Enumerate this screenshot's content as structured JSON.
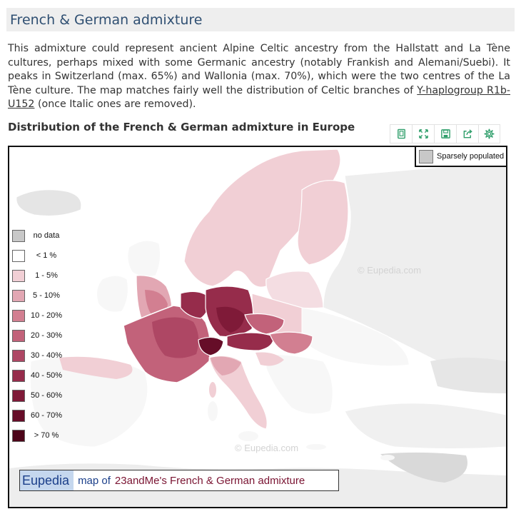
{
  "section": {
    "title": "French & German admixture"
  },
  "intro": {
    "text_before": "This admixture could represent ancient Alpine Celtic ancestry from the Hallstatt and La Tène cultures, perhaps mixed with some Germanic ancestry (notably Frankish and Alemani/Suebi). It peaks in Switzerland (max. 65%) and Wallonia (max. 70%), which were the two centres of the La Tène culture. The map matches fairly well the distribution of Celtic branches of ",
    "link_text": "Y-haplogroup R1b-U152",
    "text_after": " (once Italic ones are removed)."
  },
  "chart_title": "Distribution of the French & German admixture in Europe",
  "toolbar": {
    "buttons": [
      {
        "icon": "copy-icon"
      },
      {
        "icon": "fullscreen-icon"
      },
      {
        "icon": "save-icon"
      },
      {
        "icon": "share-icon"
      },
      {
        "icon": "gear-icon"
      }
    ],
    "color": "#2e9e6a"
  },
  "map": {
    "sparse_label": "Sparsely populated",
    "sparse_color": "#c8c8c8",
    "legend": [
      {
        "label": "no data",
        "color": "#c8c8c8"
      },
      {
        "label": "< 1 %",
        "color": "#ffffff"
      },
      {
        "label": "1 - 5%",
        "color": "#f1cfd5"
      },
      {
        "label": "5 - 10%",
        "color": "#e2a7b3"
      },
      {
        "label": "10 - 20%",
        "color": "#d27f91"
      },
      {
        "label": "20 - 30%",
        "color": "#c2627a"
      },
      {
        "label": "30 - 40%",
        "color": "#ae4764"
      },
      {
        "label": "40 - 50%",
        "color": "#962c4b"
      },
      {
        "label": "50 - 60%",
        "color": "#7f1a38"
      },
      {
        "label": "60 - 70%",
        "color": "#660d28"
      },
      {
        "label": "> 70 %",
        "color": "#4d0419"
      }
    ],
    "watermark_1": "© Eupedia.com",
    "watermark_2": "©  Eupedia.com",
    "banner": {
      "brand": "Eupedia",
      "map_of": "map of",
      "title": "23andMe's French & German admixture"
    }
  }
}
